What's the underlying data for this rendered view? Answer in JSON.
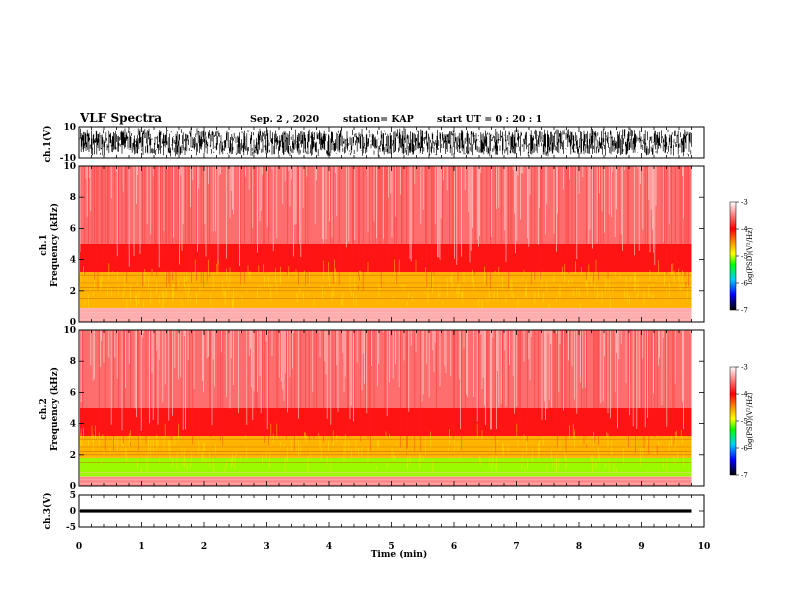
{
  "header": {
    "title": "VLF Spectra",
    "date": "Sep. 2 , 2020",
    "station": "station= KAP",
    "start": "start UT =  0 : 20 : 1"
  },
  "colorbar": {
    "label": "log(PSD)(V²/Hz)",
    "ticks": [
      "-3",
      "-4",
      "-5",
      "-6",
      "-7"
    ],
    "colors": [
      "#ffffff",
      "#ff3030",
      "#ff0000",
      "#ff9900",
      "#ffff00",
      "#00ff00",
      "#00ccff",
      "#0000ff",
      "#000000"
    ]
  },
  "chart_data": [
    {
      "type": "line",
      "name": "ch1-waveform",
      "ylabel": "ch.1(V)",
      "ylim": [
        -10,
        10
      ],
      "yticks": [
        "10",
        "-10"
      ],
      "xlim": [
        0,
        10
      ],
      "description_values": {
        "mean": 0,
        "amplitude_range": [
          -8,
          8
        ]
      }
    },
    {
      "type": "heatmap",
      "name": "ch1-spectrogram",
      "ylabel": "ch.1\nFrequency (kHz)",
      "ylim": [
        0,
        10
      ],
      "yticks": [
        "0",
        "2",
        "4",
        "6",
        "8",
        "10"
      ],
      "xlim": [
        0,
        10
      ],
      "data_end_min": 9.8,
      "bands_khz": [
        {
          "from": 0,
          "to": 0.9,
          "level": -3.2
        },
        {
          "from": 0.9,
          "to": 3.2,
          "level": -4.3
        },
        {
          "from": 3.2,
          "to": 5,
          "level": -3.8
        },
        {
          "from": 5,
          "to": 10,
          "level": -3.4
        }
      ]
    },
    {
      "type": "heatmap",
      "name": "ch2-spectrogram",
      "ylabel": "ch.2\nFrequency (kHz)",
      "ylim": [
        0,
        10
      ],
      "yticks": [
        "0",
        "2",
        "4",
        "6",
        "8",
        "10"
      ],
      "xlim": [
        0,
        10
      ],
      "data_end_min": 9.8,
      "bands_khz": [
        {
          "from": 0,
          "to": 0.6,
          "level": -3.3
        },
        {
          "from": 0.6,
          "to": 1.8,
          "level": -4.8
        },
        {
          "from": 1.8,
          "to": 3.2,
          "level": -4.3
        },
        {
          "from": 3.2,
          "to": 5,
          "level": -3.8
        },
        {
          "from": 5,
          "to": 10,
          "level": -3.4
        }
      ]
    },
    {
      "type": "line",
      "name": "ch3-waveform",
      "ylabel": "ch.3(V)",
      "ylim": [
        -5,
        5
      ],
      "yticks": [
        "5",
        "0",
        "-5"
      ],
      "xlim": [
        0,
        10
      ],
      "description_values": {
        "mean": 0,
        "amplitude_range": [
          -0.5,
          0.5
        ]
      }
    }
  ],
  "xaxis": {
    "label": "Time (min)",
    "ticks": [
      "0",
      "1",
      "2",
      "3",
      "4",
      "5",
      "6",
      "7",
      "8",
      "9",
      "10"
    ]
  }
}
